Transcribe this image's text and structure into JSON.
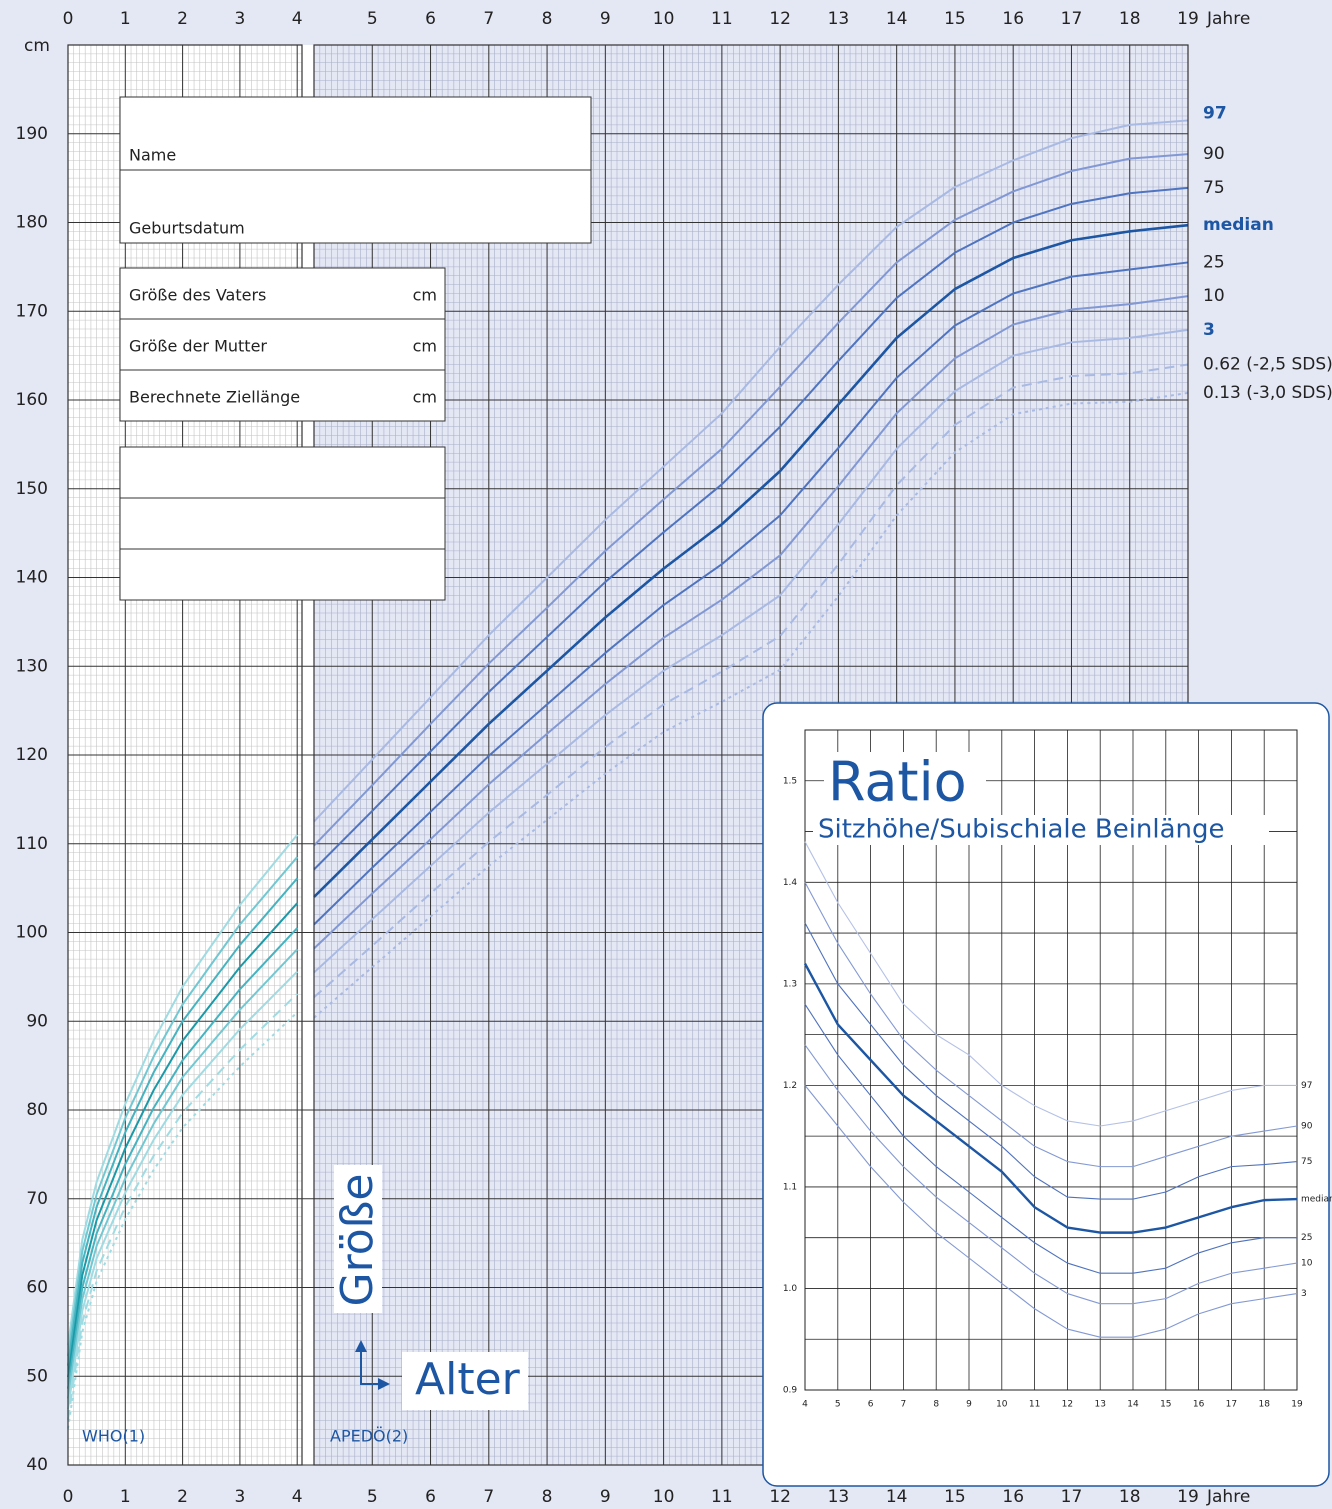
{
  "chart_data": [
    {
      "type": "line",
      "x_label": "Jahre",
      "y_label": "cm",
      "y_title": "Größe",
      "x_title": "Alter",
      "xlim": [
        0,
        19
      ],
      "ylim": [
        40,
        200
      ],
      "xticks": [
        0,
        1,
        2,
        3,
        4,
        5,
        6,
        7,
        8,
        9,
        10,
        11,
        12,
        13,
        14,
        15,
        16,
        17,
        18,
        19
      ],
      "yticks": [
        40,
        50,
        60,
        70,
        80,
        90,
        100,
        110,
        120,
        130,
        140,
        150,
        160,
        170,
        180,
        190
      ],
      "grid": true,
      "panels": [
        {
          "label": "WHO(1)",
          "xlim": [
            0,
            4
          ],
          "x": [
            0,
            0.25,
            0.5,
            1,
            1.5,
            2,
            3,
            4
          ],
          "series": [
            {
              "color": "#9fdbe2",
              "values": [
                53.5,
                65.4,
                71.9,
                80.7,
                87.9,
                93.9,
                103.1,
                111
              ]
            },
            {
              "color": "#72c8d2",
              "values": [
                52.3,
                64.1,
                70.5,
                79.1,
                86.1,
                91.9,
                100.9,
                108.5
              ]
            },
            {
              "color": "#45b3c0",
              "values": [
                51.2,
                62.8,
                69.1,
                77.5,
                84.3,
                90,
                98.6,
                106.1
              ]
            },
            {
              "color": "#1a9aa8",
              "highlight": true,
              "values": [
                49.9,
                61.4,
                67.6,
                75.7,
                82.3,
                87.8,
                96.1,
                103.3
              ]
            },
            {
              "color": "#45b3c0",
              "values": [
                48.6,
                60,
                66.1,
                73.9,
                80.3,
                85.6,
                93.6,
                100.5
              ]
            },
            {
              "color": "#72c8d2",
              "values": [
                47.5,
                58.7,
                64.7,
                72.3,
                78.5,
                83.7,
                91.3,
                98.1
              ]
            },
            {
              "color": "#9fdbe2",
              "values": [
                46.3,
                57.4,
                63.3,
                70.7,
                76.7,
                81.7,
                89.1,
                95.6
              ]
            },
            {
              "color": "#9fdbe2",
              "dash": "dashed",
              "values": [
                45.1,
                56.1,
                61.9,
                69.1,
                74.9,
                79.7,
                86.8,
                93.1
              ]
            },
            {
              "color": "#9fdbe2",
              "dash": "dotted",
              "values": [
                44.1,
                55,
                60.7,
                67.7,
                73.3,
                78,
                84.9,
                91
              ]
            }
          ]
        },
        {
          "label": "APEDÖ(2)",
          "xlim": [
            4,
            19
          ],
          "x": [
            4,
            5,
            6,
            7,
            8,
            9,
            10,
            11,
            12,
            13,
            14,
            15,
            16,
            17,
            18,
            19
          ],
          "series": [
            {
              "name": "97",
              "color": "#a8b9e3",
              "highlight": true,
              "values": [
                112.5,
                119.5,
                126.5,
                133.5,
                140,
                146.5,
                152.5,
                158.5,
                166,
                173,
                179.5,
                184,
                187,
                189.5,
                191,
                191.5
              ]
            },
            {
              "name": "90",
              "color": "#8198d4",
              "values": [
                109.8,
                116.6,
                123.5,
                130.3,
                136.6,
                143,
                148.8,
                154.5,
                161.5,
                168.7,
                175.5,
                180.3,
                183.5,
                185.8,
                187.2,
                187.7
              ]
            },
            {
              "name": "75",
              "color": "#4f74c0",
              "values": [
                107.1,
                113.7,
                120.4,
                127.1,
                133.3,
                139.5,
                145.1,
                150.5,
                157,
                164.4,
                171.5,
                176.6,
                180,
                182.1,
                183.3,
                183.9
              ]
            },
            {
              "name": "median",
              "color": "#1d56a3",
              "highlight": true,
              "values": [
                104,
                110.5,
                117,
                123.5,
                129.5,
                135.5,
                141,
                146,
                152,
                159.5,
                167,
                172.5,
                176,
                178,
                179,
                179.7
              ]
            },
            {
              "name": "25",
              "color": "#4f74c0",
              "values": [
                100.9,
                107.3,
                113.6,
                119.9,
                125.7,
                131.5,
                136.9,
                141.5,
                147,
                154.6,
                162.5,
                168.4,
                172,
                173.9,
                174.7,
                175.5
              ]
            },
            {
              "name": "10",
              "color": "#8198d4",
              "values": [
                98.2,
                104.4,
                110.5,
                116.7,
                122.4,
                128,
                133.2,
                137.5,
                142.5,
                150.3,
                158.5,
                164.7,
                168.5,
                170.2,
                170.8,
                171.7
              ]
            },
            {
              "name": "3",
              "color": "#a8b9e3",
              "highlight": true,
              "values": [
                95.5,
                101.5,
                107.5,
                113.5,
                119,
                124.5,
                129.5,
                133.5,
                138,
                146,
                154.5,
                161,
                165,
                166.5,
                167,
                167.9
              ]
            },
            {
              "name": "0.62 (-2,5 SDS)",
              "color": "#a8b9e3",
              "dash": "dashed",
              "values": [
                92.7,
                98.5,
                104.4,
                110.2,
                115.5,
                120.9,
                125.7,
                129.4,
                133.4,
                141.5,
                150.4,
                157.2,
                161.4,
                162.7,
                163,
                164
              ]
            },
            {
              "name": "0.13 (-3,0 SDS)",
              "color": "#a8b9e3",
              "dash": "dotted",
              "values": [
                90.4,
                96.1,
                101.8,
                107.5,
                112.7,
                117.9,
                122.6,
                126,
                129.6,
                137.9,
                147,
                154.1,
                158.4,
                159.6,
                159.8,
                160.8
              ]
            }
          ]
        }
      ]
    },
    {
      "type": "line",
      "title": "Ratio",
      "subtitle": "Sitzhöhe/Subischiale Beinlänge",
      "x": [
        4,
        5,
        6,
        7,
        8,
        9,
        10,
        11,
        12,
        13,
        14,
        15,
        16,
        17,
        18,
        19
      ],
      "xlim": [
        4,
        19
      ],
      "ylim": [
        0.9,
        1.55
      ],
      "xticks": [
        4,
        5,
        6,
        7,
        8,
        9,
        10,
        11,
        12,
        13,
        14,
        15,
        16,
        17,
        18,
        19
      ],
      "yticks": [
        0.9,
        {
          "value": 1,
          "label": "1.0"
        },
        1.1,
        1.2,
        1.3,
        1.4,
        1.5
      ],
      "grid": true,
      "series": [
        {
          "name": "97",
          "color": "#b4c1e6",
          "values": [
            1.44,
            1.38,
            1.33,
            1.28,
            1.25,
            1.23,
            1.2,
            1.18,
            1.165,
            1.16,
            1.165,
            1.175,
            1.185,
            1.195,
            1.2,
            1.2
          ]
        },
        {
          "name": "90",
          "color": "#8399d3",
          "values": [
            1.4,
            1.34,
            1.29,
            1.245,
            1.215,
            1.19,
            1.165,
            1.14,
            1.125,
            1.12,
            1.12,
            1.13,
            1.14,
            1.15,
            1.155,
            1.16
          ]
        },
        {
          "name": "75",
          "color": "#4f72bd",
          "values": [
            1.36,
            1.3,
            1.26,
            1.22,
            1.19,
            1.165,
            1.14,
            1.11,
            1.09,
            1.088,
            1.088,
            1.095,
            1.11,
            1.12,
            1.122,
            1.125
          ]
        },
        {
          "name": "median",
          "color": "#1d56a3",
          "highlight": true,
          "values": [
            1.32,
            1.26,
            1.225,
            1.19,
            1.165,
            1.14,
            1.115,
            1.08,
            1.06,
            1.055,
            1.055,
            1.06,
            1.07,
            1.08,
            1.087,
            1.088
          ]
        },
        {
          "name": "25",
          "color": "#4f72bd",
          "values": [
            1.28,
            1.23,
            1.19,
            1.15,
            1.12,
            1.095,
            1.07,
            1.045,
            1.025,
            1.015,
            1.015,
            1.02,
            1.035,
            1.045,
            1.05,
            1.05
          ]
        },
        {
          "name": "10",
          "color": "#8399d3",
          "values": [
            1.24,
            1.195,
            1.155,
            1.12,
            1.09,
            1.065,
            1.04,
            1.015,
            0.995,
            0.985,
            0.985,
            0.99,
            1.005,
            1.015,
            1.02,
            1.025
          ]
        },
        {
          "name": "3",
          "color": "#8399d3",
          "values": [
            1.2,
            1.16,
            1.12,
            1.085,
            1.055,
            1.03,
            1.005,
            0.98,
            0.96,
            0.952,
            0.952,
            0.96,
            0.975,
            0.985,
            0.99,
            0.995
          ]
        }
      ]
    }
  ],
  "form": {
    "name": "Name",
    "birth_date": "Geburtsdatum",
    "rows": [
      {
        "label": "Größe des Vaters",
        "unit": "cm"
      },
      {
        "label": "Größe der Mutter",
        "unit": "cm"
      },
      {
        "label": "Berechnete Ziellänge",
        "unit": "cm"
      }
    ]
  }
}
